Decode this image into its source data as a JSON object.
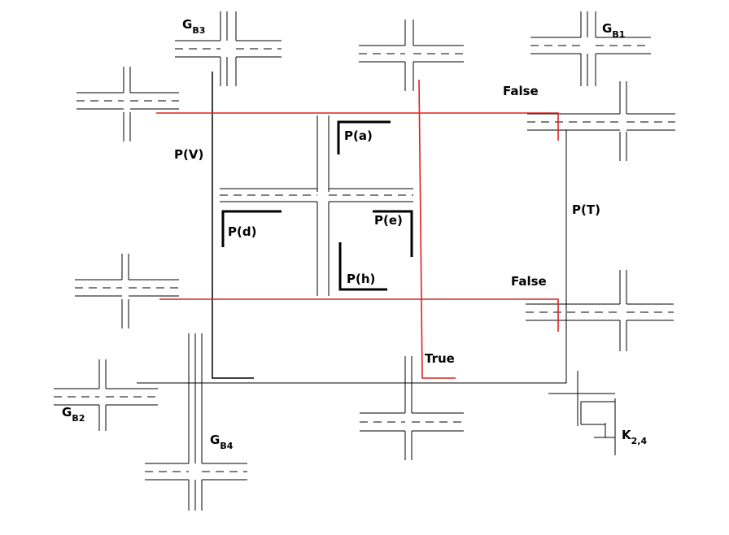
{
  "labels": {
    "pv": "P(V)",
    "pt": "P(T)",
    "pa": "P(a)",
    "pd": "P(d)",
    "pe": "P(e)",
    "ph": "P(h)",
    "false_top": "False",
    "false_mid": "False",
    "true_bottom": "True"
  },
  "groups": {
    "gb1": {
      "base": "G",
      "sub": "B1"
    },
    "gb2": {
      "base": "G",
      "sub": "B2"
    },
    "gb3": {
      "base": "G",
      "sub": "B3"
    },
    "gb4": {
      "base": "G",
      "sub": "B4"
    },
    "k24": {
      "base": "K",
      "sub": "2,4"
    }
  },
  "colors": {
    "path_red": "#e02020",
    "ink": "#000000",
    "background": "#ffffff"
  }
}
